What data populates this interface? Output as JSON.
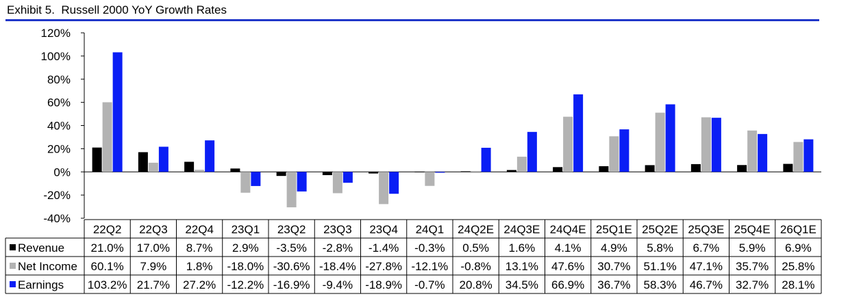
{
  "header": {
    "title": "Exhibit 5.  Russell 2000 YoY Growth Rates",
    "rule_color": "#1f36c9"
  },
  "chart_data": {
    "type": "bar",
    "title": "Exhibit 5.  Russell 2000 YoY Growth Rates",
    "xlabel": "",
    "ylabel": "",
    "ylim": [
      -40,
      120
    ],
    "yticks": [
      -40,
      -20,
      0,
      20,
      40,
      60,
      80,
      100,
      120
    ],
    "ytick_labels": [
      "-40%",
      "-20%",
      "0%",
      "20%",
      "40%",
      "60%",
      "80%",
      "100%",
      "120%"
    ],
    "grid": false,
    "legend_placement": "left of data table",
    "categories": [
      "22Q2",
      "22Q3",
      "22Q4",
      "23Q1",
      "23Q2",
      "23Q3",
      "23Q4",
      "24Q1",
      "24Q2E",
      "24Q3E",
      "24Q4E",
      "25Q1E",
      "25Q2E",
      "25Q3E",
      "25Q4E",
      "26Q1E"
    ],
    "series": [
      {
        "name": "Revenue",
        "color": "#000000",
        "values": [
          21.0,
          17.0,
          8.7,
          2.9,
          -3.5,
          -2.8,
          -1.4,
          -0.3,
          0.5,
          1.6,
          4.1,
          4.9,
          5.8,
          6.7,
          5.9,
          6.9
        ],
        "labels": [
          "21.0%",
          "17.0%",
          "8.7%",
          "2.9%",
          "-3.5%",
          "-2.8%",
          "-1.4%",
          "-0.3%",
          "0.5%",
          "1.6%",
          "4.1%",
          "4.9%",
          "5.8%",
          "6.7%",
          "5.9%",
          "6.9%"
        ]
      },
      {
        "name": "Net Income",
        "color": "#b3b3b3",
        "values": [
          60.1,
          7.9,
          1.8,
          -18.0,
          -30.6,
          -18.4,
          -27.8,
          -12.1,
          -0.8,
          13.1,
          47.6,
          30.7,
          51.1,
          47.1,
          35.7,
          25.8
        ],
        "labels": [
          "60.1%",
          "7.9%",
          "1.8%",
          "-18.0%",
          "-30.6%",
          "-18.4%",
          "-27.8%",
          "-12.1%",
          "-0.8%",
          "13.1%",
          "47.6%",
          "30.7%",
          "51.1%",
          "47.1%",
          "35.7%",
          "25.8%"
        ]
      },
      {
        "name": "Earnings",
        "color": "#0a1ef5",
        "values": [
          103.2,
          21.7,
          27.2,
          -12.2,
          -16.9,
          -9.4,
          -18.9,
          -0.7,
          20.8,
          34.5,
          66.9,
          36.7,
          58.3,
          46.7,
          32.7,
          28.1
        ],
        "labels": [
          "103.2%",
          "21.7%",
          "27.2%",
          "-12.2%",
          "-16.9%",
          "-9.4%",
          "-18.9%",
          "-0.7%",
          "20.8%",
          "34.5%",
          "66.9%",
          "36.7%",
          "58.3%",
          "46.7%",
          "32.7%",
          "28.1%"
        ]
      }
    ]
  }
}
